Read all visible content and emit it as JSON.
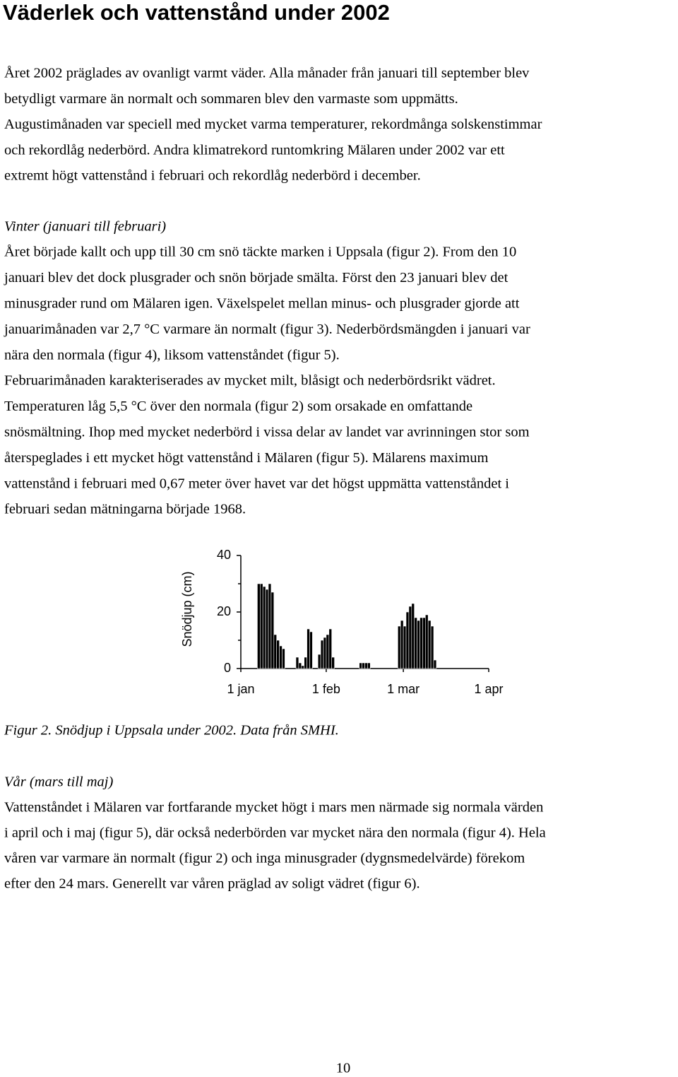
{
  "title": "Väderlek och vattenstånd under 2002",
  "intro": [
    "Året 2002 präglades av ovanligt varmt väder. Alla månader från januari till september blev",
    "betydligt varmare än normalt och sommaren blev den varmaste som uppmätts.",
    "Augustimånaden var speciell med mycket varma temperaturer, rekordmånga solskenstimmar",
    "och rekordlåg nederbörd. Andra klimatrekord runtomkring Mälaren under 2002 var ett",
    "extremt högt vattenstånd i februari och rekordlåg nederbörd i december."
  ],
  "winter": {
    "heading": "Vinter (januari till februari)",
    "lines": [
      "Året började kallt och upp till 30 cm snö täckte marken i Uppsala (figur 2). From den 10",
      "januari blev det dock plusgrader och snön började smälta. Först den 23 januari blev det",
      "minusgrader rund om Mälaren igen. Växelspelet mellan minus- och plusgrader gjorde att",
      "januarimånaden var 2,7 °C varmare än normalt (figur 3). Nederbördsmängden i januari var",
      "nära den normala (figur 4), liksom vattenståndet (figur 5).",
      "Februarimånaden karakteriserades av mycket milt, blåsigt och nederbördsrikt vädret.",
      "Temperaturen låg 5,5 °C över den normala (figur 2) som orsakade en omfattande",
      "snösmältning. Ihop med mycket nederbörd i vissa delar av landet var avrinningen stor som",
      "återspeglades i ett mycket högt vattenstånd i Mälaren (figur 5). Mälarens maximum",
      "vattenstånd i februari med 0,67 meter över havet var det högst uppmätta vattenståndet i",
      "februari sedan mätningarna började 1968."
    ]
  },
  "chart_data": {
    "type": "bar",
    "y_label": "Snödjup (cm)",
    "color": "#000000",
    "x": [
      6,
      7,
      8,
      9,
      10,
      11,
      12,
      13,
      14,
      15,
      20,
      21,
      22,
      23,
      24,
      25,
      28,
      29,
      30,
      31,
      32,
      33,
      43,
      44,
      45,
      46,
      57,
      58,
      59,
      60,
      61,
      62,
      63,
      64,
      65,
      66,
      67,
      68,
      69,
      70
    ],
    "values": [
      30,
      30,
      29,
      28,
      30,
      27,
      12,
      10,
      8,
      7,
      4,
      2,
      1,
      4,
      14,
      13,
      5,
      10,
      11,
      12,
      14,
      4,
      2,
      2,
      2,
      2,
      15,
      17,
      15,
      20,
      22,
      23,
      18,
      17,
      18,
      18,
      19,
      17,
      15,
      3
    ],
    "xlim": [
      0,
      90
    ],
    "xticks": [
      {
        "value": 0,
        "label": "1 jan"
      },
      {
        "value": 31,
        "label": "1 feb"
      },
      {
        "value": 59,
        "label": "1 mar"
      },
      {
        "value": 90,
        "label": "1 apr"
      }
    ],
    "ylim": [
      0,
      40
    ],
    "yticks": [
      0,
      20,
      40
    ],
    "yminorticks": [
      10,
      30
    ]
  },
  "figure_caption": "Figur 2. Snödjup i Uppsala under 2002. Data från SMHI.",
  "spring": {
    "heading": "Vår (mars till maj)",
    "lines": [
      "Vattenståndet i Mälaren var fortfarande mycket högt i mars men närmade sig normala värden",
      "i april och i maj (figur 5), där också nederbörden var mycket nära den normala (figur 4). Hela",
      "våren var varmare än normalt (figur 2) och inga minusgrader (dygnsmedelvärde) förekom",
      "efter den 24 mars. Generellt var våren präglad av soligt vädret (figur 6)."
    ]
  },
  "page_number": "10"
}
